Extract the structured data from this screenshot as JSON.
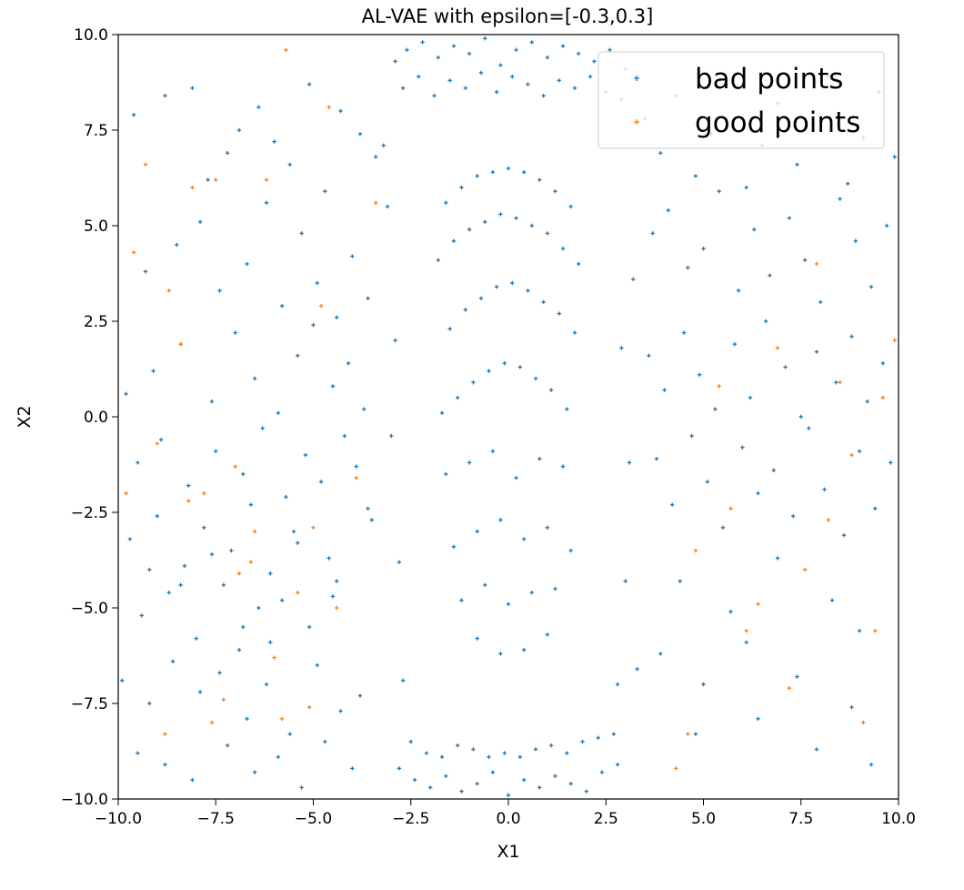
{
  "chart_data": {
    "type": "scatter",
    "title": "AL-VAE with epsilon=[-0.3,0.3]",
    "xlabel": "X1",
    "ylabel": "X2",
    "xlim": [
      -10,
      10
    ],
    "ylim": [
      -10,
      10
    ],
    "xticks": [
      -10.0,
      -7.5,
      -5.0,
      -2.5,
      0.0,
      2.5,
      5.0,
      7.5,
      10.0
    ],
    "yticks": [
      -10.0,
      -7.5,
      -5.0,
      -2.5,
      0.0,
      2.5,
      5.0,
      7.5,
      10.0
    ],
    "xtick_labels": [
      "−10.0",
      "−7.5",
      "−5.0",
      "−2.5",
      "0.0",
      "2.5",
      "5.0",
      "7.5",
      "10.0"
    ],
    "ytick_labels": [
      "−10.0",
      "−7.5",
      "−5.0",
      "−2.5",
      "0.0",
      "2.5",
      "5.0",
      "7.5",
      "10.0"
    ],
    "grid": false,
    "legend_position": "top-right",
    "marker": "+",
    "series": [
      {
        "name": "bad points",
        "color": "#1f77b4",
        "x": [
          -9.6,
          -8.8,
          -8.1,
          -7.7,
          -7.2,
          -6.9,
          -6.4,
          -6.0,
          -5.6,
          -5.1,
          -4.7,
          -4.3,
          -3.8,
          -3.4,
          -9.3,
          -8.5,
          -7.9,
          -7.4,
          -6.7,
          -6.2,
          -5.8,
          -5.3,
          -4.9,
          -4.4,
          -4.0,
          -3.6,
          -9.8,
          -9.1,
          -8.4,
          -7.6,
          -7.0,
          -6.5,
          -5.9,
          -5.4,
          -5.0,
          -4.5,
          -4.1,
          -3.7,
          -9.5,
          -8.9,
          -8.2,
          -7.5,
          -6.8,
          -6.3,
          -5.7,
          -5.2,
          -4.8,
          -4.2,
          -3.9,
          -9.7,
          -9.0,
          -8.3,
          -7.8,
          -7.1,
          -6.6,
          -6.1,
          -5.5,
          -4.6,
          -3.5,
          -9.4,
          -8.7,
          -8.0,
          -7.3,
          -6.9,
          -6.4,
          -5.8,
          -5.1,
          -4.4,
          -9.9,
          -9.2,
          -8.6,
          -7.9,
          -7.4,
          -6.7,
          -6.2,
          -5.6,
          -4.9,
          -4.3,
          -3.8,
          -9.5,
          -8.8,
          -8.1,
          -7.2,
          -6.5,
          -5.9,
          -5.3,
          -4.7,
          -4.0,
          -9.2,
          -8.4,
          -7.6,
          -6.8,
          -6.1,
          -5.4,
          -4.5,
          -3.6,
          3.5,
          3.9,
          4.3,
          4.8,
          5.2,
          5.6,
          6.1,
          6.5,
          6.9,
          7.4,
          7.8,
          8.2,
          8.7,
          9.1,
          9.5,
          9.9,
          3.7,
          4.1,
          4.6,
          5.0,
          5.4,
          5.9,
          6.3,
          6.7,
          7.2,
          7.6,
          8.0,
          8.5,
          8.9,
          9.3,
          9.7,
          3.6,
          4.0,
          4.5,
          4.9,
          5.3,
          5.8,
          6.2,
          6.6,
          7.1,
          7.5,
          7.9,
          8.4,
          8.8,
          9.2,
          9.6,
          3.8,
          4.2,
          4.7,
          5.1,
          5.5,
          6.0,
          6.4,
          6.8,
          7.3,
          7.7,
          8.1,
          8.6,
          9.0,
          9.4,
          9.8,
          4.4,
          5.7,
          6.9,
          8.3,
          9.0,
          3.9,
          5.0,
          6.1,
          7.4,
          8.8,
          4.8,
          6.4,
          7.9,
          9.3,
          -2.9,
          -2.6,
          -2.2,
          -1.8,
          -1.4,
          -1.0,
          -0.6,
          -0.2,
          0.2,
          0.6,
          1.0,
          1.4,
          1.8,
          2.2,
          2.6,
          3.0,
          -2.7,
          -2.3,
          -1.9,
          -1.5,
          -1.1,
          -0.7,
          -0.3,
          0.1,
          0.5,
          0.9,
          1.3,
          1.7,
          2.1,
          2.5,
          2.9,
          -2.8,
          -2.4,
          -2.0,
          -1.6,
          -1.2,
          -0.8,
          -0.4,
          0.0,
          0.4,
          0.8,
          1.2,
          1.6,
          2.0,
          2.4,
          2.8,
          -2.5,
          -2.1,
          -1.7,
          -1.3,
          -0.9,
          -0.5,
          -0.1,
          0.3,
          0.7,
          1.1,
          1.5,
          1.9,
          2.3,
          2.7,
          -1.6,
          -1.2,
          -0.8,
          -0.4,
          0.0,
          0.4,
          0.8,
          1.2,
          1.6,
          -1.8,
          -1.4,
          -1.0,
          -0.6,
          -0.2,
          0.2,
          0.6,
          1.0,
          1.4,
          1.8,
          -1.5,
          -1.1,
          -0.7,
          -0.3,
          0.1,
          0.5,
          0.9,
          1.3,
          1.7,
          -1.7,
          -1.3,
          -0.9,
          -0.5,
          -0.1,
          0.3,
          0.7,
          1.1,
          1.5,
          -1.6,
          -1.0,
          -0.4,
          0.2,
          0.8,
          1.4,
          -1.4,
          -0.8,
          -0.2,
          0.4,
          1.0,
          1.6,
          -1.2,
          -0.6,
          0.0,
          0.6,
          1.2,
          -0.8,
          -0.2,
          0.4,
          1.0,
          -3.0,
          -2.9,
          -2.8,
          -3.1,
          3.1,
          3.2,
          3.0,
          2.9,
          -3.2,
          3.3,
          -2.7,
          2.8
        ],
        "y": [
          7.9,
          8.4,
          8.6,
          6.2,
          6.9,
          7.5,
          8.1,
          7.2,
          6.6,
          8.7,
          5.9,
          8.0,
          7.4,
          6.8,
          3.8,
          4.5,
          5.1,
          3.3,
          4.0,
          5.6,
          2.9,
          4.8,
          3.5,
          2.6,
          4.2,
          3.1,
          0.6,
          1.2,
          1.9,
          0.4,
          2.2,
          1.0,
          0.1,
          1.6,
          2.4,
          0.8,
          1.4,
          0.2,
          -1.2,
          -0.6,
          -1.8,
          -0.9,
          -1.5,
          -0.3,
          -2.1,
          -1.0,
          -1.7,
          -0.5,
          -1.3,
          -3.2,
          -2.6,
          -3.9,
          -2.9,
          -3.5,
          -2.3,
          -4.1,
          -3.0,
          -3.7,
          -2.7,
          -5.2,
          -4.6,
          -5.8,
          -4.4,
          -6.1,
          -5.0,
          -4.8,
          -5.5,
          -4.3,
          -6.9,
          -7.5,
          -6.4,
          -7.2,
          -6.7,
          -7.9,
          -7.0,
          -8.3,
          -6.5,
          -7.7,
          -7.3,
          -8.8,
          -9.1,
          -9.5,
          -8.6,
          -9.3,
          -8.9,
          -9.7,
          -8.5,
          -9.2,
          -4.0,
          -4.4,
          -3.6,
          -5.5,
          -5.9,
          -3.3,
          -4.7,
          -2.4,
          7.8,
          6.9,
          8.4,
          6.3,
          7.4,
          8.8,
          6.0,
          7.1,
          8.2,
          6.6,
          7.7,
          8.9,
          6.1,
          7.3,
          8.5,
          6.8,
          4.8,
          5.4,
          3.9,
          4.4,
          5.9,
          3.3,
          4.9,
          3.7,
          5.2,
          4.1,
          3.0,
          5.7,
          4.6,
          3.4,
          5.0,
          1.6,
          0.7,
          2.2,
          1.1,
          0.2,
          1.9,
          0.5,
          2.5,
          1.3,
          0.0,
          1.7,
          0.9,
          2.1,
          0.4,
          1.4,
          -1.1,
          -2.3,
          -0.5,
          -1.7,
          -2.9,
          -0.8,
          -2.0,
          -1.4,
          -2.6,
          -0.3,
          -1.9,
          -3.1,
          -0.9,
          -2.4,
          -1.2,
          -4.3,
          -5.1,
          -3.7,
          -4.8,
          -5.6,
          -6.2,
          -7.0,
          -5.9,
          -6.8,
          -7.6,
          -8.3,
          -7.9,
          -8.7,
          -9.1,
          9.3,
          9.6,
          9.8,
          9.4,
          9.7,
          9.5,
          9.9,
          9.2,
          9.6,
          9.8,
          9.4,
          9.7,
          9.5,
          9.3,
          9.6,
          9.1,
          8.6,
          8.9,
          8.4,
          8.8,
          8.6,
          9.0,
          8.5,
          8.9,
          8.7,
          8.4,
          8.8,
          8.6,
          8.9,
          8.5,
          8.3,
          -9.2,
          -9.5,
          -9.7,
          -9.4,
          -9.8,
          -9.6,
          -9.3,
          -9.9,
          -9.5,
          -9.7,
          -9.4,
          -9.6,
          -9.8,
          -9.3,
          -9.1,
          -8.5,
          -8.8,
          -8.9,
          -8.6,
          -8.7,
          -8.9,
          -8.8,
          -8.9,
          -8.7,
          -8.6,
          -8.8,
          -8.5,
          -8.4,
          -8.3,
          5.6,
          6.0,
          6.3,
          6.4,
          6.5,
          6.4,
          6.2,
          5.9,
          5.5,
          4.1,
          4.6,
          4.9,
          5.1,
          5.3,
          5.2,
          5.0,
          4.8,
          4.4,
          4.0,
          2.3,
          2.8,
          3.1,
          3.4,
          3.5,
          3.3,
          3.0,
          2.7,
          2.2,
          0.1,
          0.5,
          0.9,
          1.2,
          1.4,
          1.3,
          1.0,
          0.7,
          0.2,
          -1.5,
          -1.2,
          -0.9,
          -1.6,
          -1.1,
          -1.3,
          -3.4,
          -3.0,
          -2.7,
          -3.2,
          -2.9,
          -3.5,
          -4.8,
          -4.4,
          -4.9,
          -4.6,
          -4.5,
          -5.8,
          -6.2,
          -6.1,
          -5.7,
          -0.5,
          2.0,
          -3.8,
          5.5,
          -1.2,
          3.6,
          -4.3,
          1.8,
          7.1,
          -6.6,
          -6.9,
          -7.0
        ]
      },
      {
        "name": "good points",
        "color": "#ff7f0e",
        "x": [
          -9.3,
          -8.7,
          -8.1,
          -7.5,
          -6.9,
          -6.2,
          -5.7,
          -5.0,
          -4.6,
          -3.4,
          -9.6,
          -8.4,
          -7.8,
          -7.0,
          -6.5,
          -5.4,
          -4.8,
          -3.9,
          -9.0,
          -8.2,
          -7.3,
          -6.6,
          -5.8,
          -4.4,
          -9.8,
          -8.8,
          -7.6,
          -6.0,
          -5.1,
          4.3,
          5.4,
          6.1,
          6.9,
          7.6,
          8.2,
          8.8,
          9.4,
          9.9,
          4.8,
          5.7,
          7.2,
          8.5,
          9.1,
          4.6,
          6.4,
          7.9,
          9.6
        ],
        "y": [
          6.6,
          3.3,
          6.0,
          6.2,
          -4.1,
          6.2,
          9.6,
          -2.9,
          8.1,
          5.6,
          4.3,
          1.9,
          -2.0,
          -1.3,
          -3.0,
          -4.6,
          2.9,
          -1.6,
          -0.7,
          -2.2,
          -7.4,
          -3.8,
          -7.9,
          -5.0,
          -2.0,
          -8.3,
          -8.0,
          -6.3,
          -7.6,
          -9.2,
          0.8,
          -5.6,
          1.8,
          -4.0,
          -2.7,
          -1.0,
          -5.6,
          2.0,
          -3.5,
          -2.4,
          -7.1,
          0.9,
          -8.0,
          -8.3,
          -4.9,
          4.0,
          0.5
        ]
      }
    ]
  }
}
